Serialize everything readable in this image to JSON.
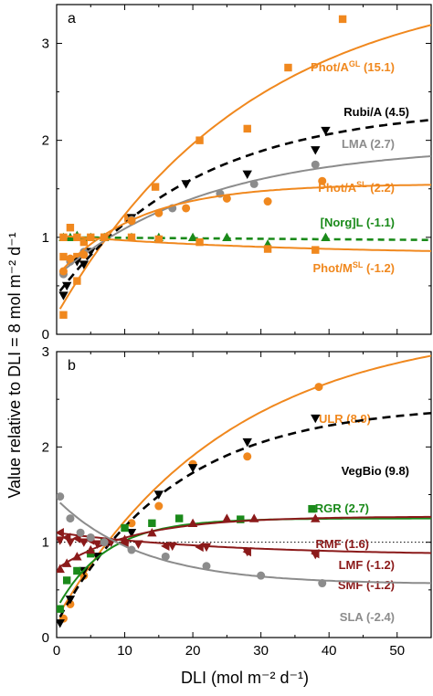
{
  "chart_data": {
    "type": "scatter",
    "ylabel": "Value relative to DLI = 8 mol m⁻² d⁻¹",
    "xlabel": "DLI (mol m⁻² d⁻¹)",
    "xlim": [
      0,
      55
    ],
    "xticks": [
      "0",
      "10",
      "20",
      "30",
      "40",
      "50"
    ],
    "panels": [
      {
        "id": "a",
        "letter": "a",
        "ylim": [
          0,
          3.4
        ],
        "yticks": [
          "0",
          "1",
          "2",
          "3"
        ],
        "reference_line": null,
        "series": [
          {
            "name": "Phot/A",
            "sup": "GL",
            "value": "(15.1)",
            "color": "#f0881e",
            "marker": "square",
            "line": "solid",
            "fit": {
              "y0": 0.2,
              "ymax": 3.7,
              "k": 0.035
            },
            "points": [
              [
                1,
                0.2
              ],
              [
                1,
                0.8
              ],
              [
                2,
                1.1
              ],
              [
                3,
                0.55
              ],
              [
                3,
                0.8
              ],
              [
                4,
                0.95
              ],
              [
                7,
                1.0
              ],
              [
                10.5,
                1.2
              ],
              [
                14.5,
                1.52
              ],
              [
                21,
                2.0
              ],
              [
                28,
                2.12
              ],
              [
                34,
                2.75
              ],
              [
                42,
                3.25
              ]
            ]
          },
          {
            "name": "Rubi/A",
            "sup": "",
            "value": "(4.5)",
            "color": "#000000",
            "marker": "triangle-down",
            "line": "dashed",
            "fit": {
              "y0": 0.4,
              "ymax": 2.35,
              "k": 0.048
            },
            "points": [
              [
                1,
                0.4
              ],
              [
                1.5,
                0.5
              ],
              [
                3,
                0.75
              ],
              [
                4,
                0.72
              ],
              [
                5,
                0.85
              ],
              [
                11,
                1.2
              ],
              [
                19,
                1.55
              ],
              [
                28,
                1.65
              ],
              [
                38,
                1.9
              ],
              [
                39.5,
                2.1
              ]
            ]
          },
          {
            "name": "LMA",
            "sup": "",
            "value": "(2.7)",
            "color": "#8c8c8c",
            "marker": "circle",
            "line": "solid",
            "fit": {
              "y0": 0.6,
              "ymax": 1.95,
              "k": 0.045
            },
            "points": [
              [
                1,
                0.62
              ],
              [
                2,
                0.75
              ],
              [
                4,
                0.85
              ],
              [
                7,
                1.0
              ],
              [
                11,
                1.18
              ],
              [
                17,
                1.3
              ],
              [
                24,
                1.45
              ],
              [
                29,
                1.55
              ],
              [
                38,
                1.75
              ]
            ]
          },
          {
            "name": "Phot/A",
            "sup": "SL",
            "value": "(2.2)",
            "color": "#f0881e",
            "marker": "circle",
            "line": "solid",
            "fit": {
              "y0": 0.6,
              "ymax": 1.55,
              "k": 0.085
            },
            "points": [
              [
                1,
                0.65
              ],
              [
                2,
                0.78
              ],
              [
                4,
                0.82
              ],
              [
                7,
                1.0
              ],
              [
                11,
                1.17
              ],
              [
                15,
                1.25
              ],
              [
                19,
                1.3
              ],
              [
                25,
                1.4
              ],
              [
                31,
                1.37
              ],
              [
                39,
                1.58
              ]
            ]
          },
          {
            "name": "[Norg]L",
            "sup": "",
            "value": "(-1.1)",
            "color": "#1a8a1a",
            "marker": "triangle-up",
            "line": "dashed",
            "fit": {
              "linear": [
                1.0,
                -0.0005
              ]
            },
            "points": [
              [
                1,
                1.0
              ],
              [
                2,
                1.0
              ],
              [
                3,
                1.02
              ],
              [
                5,
                1.0
              ],
              [
                7,
                1.0
              ],
              [
                11,
                1.0
              ],
              [
                15,
                1.0
              ],
              [
                20,
                1.0
              ],
              [
                25,
                1.0
              ],
              [
                31,
                0.93
              ],
              [
                39.5,
                1.0
              ]
            ]
          },
          {
            "name": "Phot/M",
            "sup": "SL",
            "value": "(-1.2)",
            "color": "#f0881e",
            "marker": "square",
            "line": "solid",
            "fit": {
              "y0": 1.02,
              "ymax": 0.82,
              "k": 0.03
            },
            "points": [
              [
                1,
                1.0
              ],
              [
                3,
                1.0
              ],
              [
                5,
                1.0
              ],
              [
                7,
                1.0
              ],
              [
                11,
                1.0
              ],
              [
                15,
                0.98
              ],
              [
                21,
                0.95
              ],
              [
                31,
                0.88
              ],
              [
                38,
                0.87
              ]
            ]
          }
        ]
      },
      {
        "id": "b",
        "letter": "b",
        "ylim": [
          0,
          3
        ],
        "yticks": [
          "0",
          "1",
          "2",
          "3"
        ],
        "reference_line": 1,
        "series": [
          {
            "name": "ULR",
            "sup": "",
            "value": "(8.9)",
            "color": "#f0881e",
            "marker": "circle",
            "line": "solid",
            "fit": {
              "y0": 0.2,
              "ymax": 3.3,
              "k": 0.04
            },
            "points": [
              [
                1,
                0.2
              ],
              [
                2,
                0.35
              ],
              [
                4,
                0.65
              ],
              [
                7,
                1.0
              ],
              [
                11,
                1.2
              ],
              [
                15,
                1.38
              ],
              [
                20,
                1.82
              ],
              [
                28,
                1.9
              ],
              [
                38.5,
                2.63
              ]
            ]
          },
          {
            "name": "VegBio",
            "sup": "",
            "value": "(9.8)",
            "color": "#000000",
            "marker": "triangle-down",
            "line": "dashed",
            "fit": {
              "y0": 0.15,
              "ymax": 2.45,
              "k": 0.058
            },
            "points": [
              [
                0.5,
                0.15
              ],
              [
                2,
                0.4
              ],
              [
                4,
                0.7
              ],
              [
                6,
                0.85
              ],
              [
                8,
                1.0
              ],
              [
                11,
                1.1
              ],
              [
                15,
                1.5
              ],
              [
                20,
                1.78
              ],
              [
                28,
                2.05
              ],
              [
                38,
                2.3
              ]
            ]
          },
          {
            "name": "RGR",
            "sup": "",
            "value": "(2.7)",
            "color": "#1a8a1a",
            "marker": "square",
            "line": "solid",
            "fit": {
              "y0": 0.3,
              "ymax": 1.25,
              "k": 0.14
            },
            "points": [
              [
                0.5,
                0.3
              ],
              [
                1.5,
                0.6
              ],
              [
                3,
                0.7
              ],
              [
                5,
                0.88
              ],
              [
                7,
                1.0
              ],
              [
                10,
                1.15
              ],
              [
                14,
                1.2
              ],
              [
                18,
                1.25
              ],
              [
                27,
                1.24
              ],
              [
                37.5,
                1.35
              ]
            ]
          },
          {
            "name": "RMF",
            "sup": "",
            "value": "(1.6)",
            "color": "#8b1a1a",
            "marker": "triangle-up",
            "line": "solid",
            "fit": {
              "y0": 0.72,
              "ymax": 1.27,
              "k": 0.09
            },
            "points": [
              [
                0.5,
                0.72
              ],
              [
                1.5,
                0.78
              ],
              [
                3,
                0.85
              ],
              [
                5,
                0.92
              ],
              [
                7,
                1.0
              ],
              [
                10,
                1.03
              ],
              [
                14,
                1.1
              ],
              [
                20,
                1.2
              ],
              [
                25,
                1.25
              ],
              [
                29,
                1.25
              ],
              [
                38,
                1.25
              ]
            ]
          },
          {
            "name": "LMF",
            "sup": "",
            "value": "(-1.2)",
            "color": "#8b1a1a",
            "marker": "triangle-left",
            "line": "solid",
            "fit": {
              "y0": 1.1,
              "ymax": 0.86,
              "k": 0.04
            },
            "points": [
              [
                0.5,
                1.1
              ],
              [
                1.5,
                1.05
              ],
              [
                3,
                1.04
              ],
              [
                5,
                1.02
              ],
              [
                7,
                1.0
              ],
              [
                10,
                0.98
              ],
              [
                16,
                0.96
              ],
              [
                21,
                0.95
              ],
              [
                28,
                0.9
              ],
              [
                38,
                0.88
              ]
            ]
          },
          {
            "name": "SMF",
            "sup": "",
            "value": "(-1.2)",
            "color": "#8b1a1a",
            "marker": "triangle-down",
            "line": "none",
            "fit": null,
            "points": [
              [
                0.5,
                1.02
              ],
              [
                2,
                1.0
              ],
              [
                4,
                1.0
              ],
              [
                6,
                0.98
              ],
              [
                8,
                1.0
              ],
              [
                12,
                0.98
              ],
              [
                17,
                0.96
              ],
              [
                22,
                0.95
              ],
              [
                28,
                0.9
              ],
              [
                38,
                0.87
              ]
            ]
          },
          {
            "name": "SLA",
            "sup": "",
            "value": "(-2.4)",
            "color": "#8c8c8c",
            "marker": "circle",
            "line": "solid",
            "fit": {
              "y0": 1.45,
              "ymax": 0.56,
              "k": 0.08
            },
            "points": [
              [
                0.5,
                1.48
              ],
              [
                2,
                1.25
              ],
              [
                3.5,
                1.1
              ],
              [
                5,
                1.05
              ],
              [
                7,
                1.0
              ],
              [
                11,
                0.92
              ],
              [
                16,
                0.85
              ],
              [
                22,
                0.75
              ],
              [
                30,
                0.65
              ],
              [
                39,
                0.57
              ]
            ]
          }
        ]
      }
    ]
  }
}
